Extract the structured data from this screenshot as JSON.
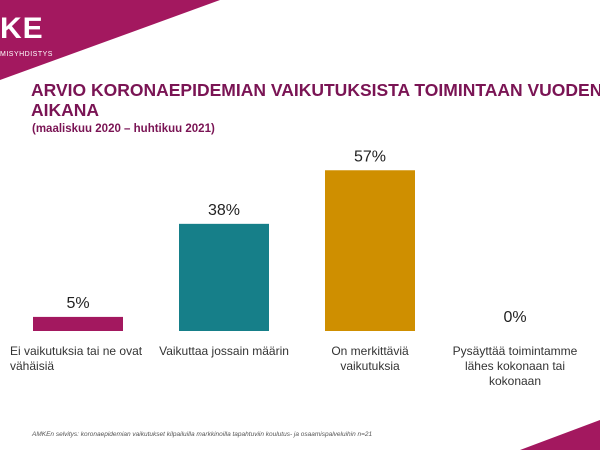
{
  "header": {
    "logo_text": "KE",
    "logo_subtext": "MISYHDISTYS",
    "title_line1": "ARVIO KORONAEPIDEMIAN VAIKUTUKSISTA TOIMINTAAN VUODEN",
    "title_line2": "AIKANA",
    "subtitle": "(maaliskuu 2020 – huhtikuu 2021)"
  },
  "footnote": "AMKEn selvitys: koronaepidemian vaikutukset kilpailuilla markkinoilla tapahtuviin koulutus- ja osaamispalveluihin n=21",
  "colors": {
    "brand": "#a3185f",
    "title": "#7a1454"
  },
  "chart_data": {
    "type": "bar",
    "title": "ARVIO KORONAEPIDEMIAN VAIKUTUKSISTA TOIMINTAAN VUODEN AIKANA",
    "subtitle": "(maaliskuu 2020 – huhtikuu 2021)",
    "categories": [
      [
        "Ei vaikutuksia tai ne ovat",
        "vähäisiä"
      ],
      [
        "Vaikuttaa jossain määrin"
      ],
      [
        "On merkittäviä",
        "vaikutuksia"
      ],
      [
        "Pysäyttää toimintamme",
        "lähes kokonaan tai",
        "kokonaan"
      ]
    ],
    "values": [
      5,
      38,
      57,
      0
    ],
    "value_labels": [
      "5%",
      "38%",
      "57%",
      "0%"
    ],
    "bar_colors": [
      "#a3185f",
      "#167f89",
      "#cf8f00",
      "#888888"
    ],
    "ylim": [
      0,
      60
    ],
    "grid": false,
    "legend": "none",
    "xlabel": "",
    "ylabel": ""
  }
}
